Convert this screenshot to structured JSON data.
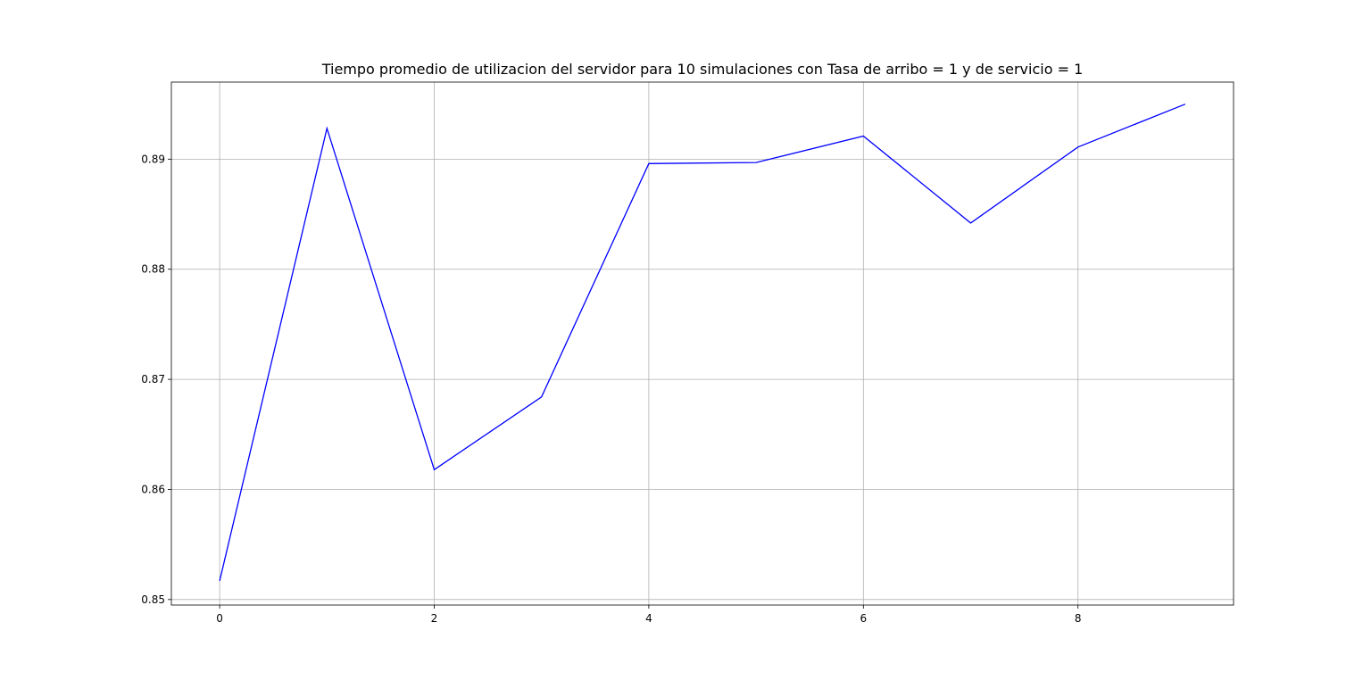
{
  "chart_data": {
    "type": "line",
    "title": "Tiempo promedio de utilizacion del servidor para 10 simulaciones con Tasa de arribo = 1 y de servicio = 1",
    "xlabel": "",
    "ylabel": "",
    "x": [
      0,
      1,
      2,
      3,
      4,
      5,
      6,
      7,
      8,
      9
    ],
    "series": [
      {
        "values": [
          0.8517,
          0.8928,
          0.8618,
          0.8684,
          0.8896,
          0.8897,
          0.8921,
          0.8842,
          0.8911,
          0.895
        ],
        "color": "#0000ff"
      }
    ],
    "xlim": [
      -0.45,
      9.45
    ],
    "ylim": [
      0.8495,
      0.897
    ],
    "xticks": [
      0,
      2,
      4,
      6,
      8
    ],
    "xtick_labels": [
      "0",
      "2",
      "4",
      "6",
      "8"
    ],
    "yticks": [
      0.85,
      0.86,
      0.87,
      0.88,
      0.89
    ],
    "ytick_labels": [
      "0.85",
      "0.86",
      "0.87",
      "0.88",
      "0.89"
    ],
    "grid": true,
    "legend": "none"
  }
}
